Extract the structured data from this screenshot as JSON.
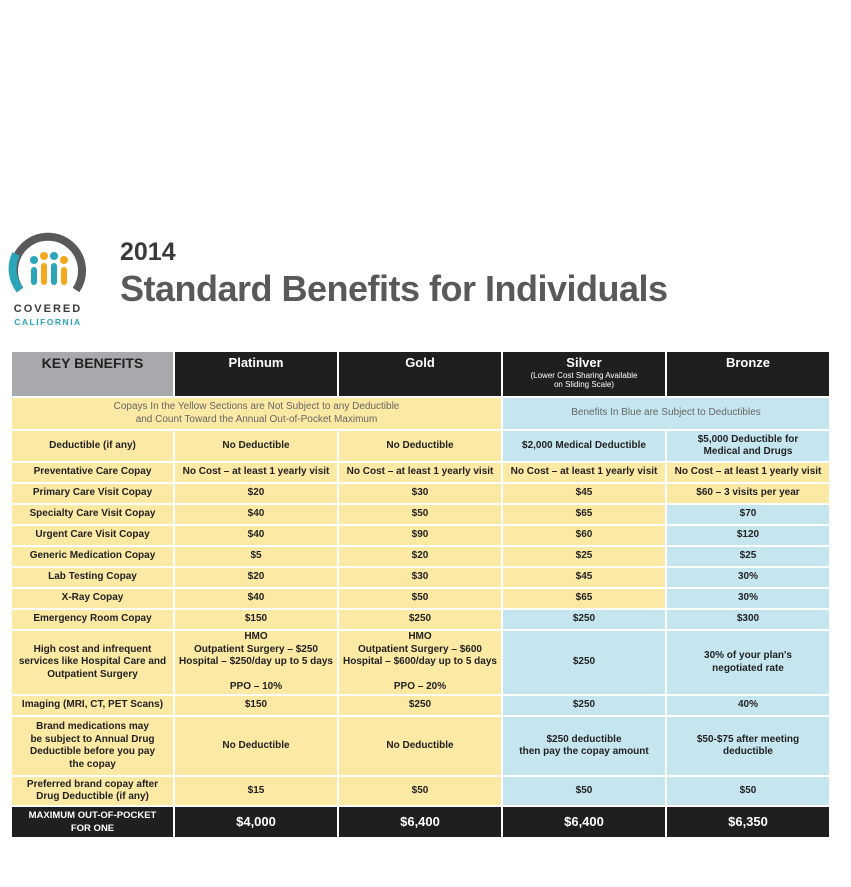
{
  "logo": {
    "line1": "COVERED",
    "line2": "CALIFORNIA"
  },
  "header": {
    "year": "2014",
    "title": "Standard Benefits for Individuals"
  },
  "table": {
    "columns": [
      "KEY BENEFITS",
      "Platinum",
      "Gold",
      "Silver",
      "Bronze"
    ],
    "silver_note": "(Lower Cost Sharing Available\non Sliding Scale)",
    "yellow_note": "Copays In the Yellow Sections are Not Subject to any Deductible\nand Count Toward the Annual Out-of-Pocket Maximum",
    "blue_note": "Benefits In Blue are Subject to Deductibles",
    "rows": [
      [
        "Deductible (if any)",
        "No Deductible",
        "No Deductible",
        "$2,000 Medical Deductible",
        "$5,000 Deductible for\nMedical and Drugs"
      ],
      [
        "Preventative Care Copay",
        "No Cost – at least 1 yearly visit",
        "No Cost – at least 1 yearly visit",
        "No Cost – at least 1 yearly visit",
        "No Cost – at least 1 yearly visit"
      ],
      [
        "Primary Care Visit Copay",
        "$20",
        "$30",
        "$45",
        "$60 – 3 visits per year"
      ],
      [
        "Specialty Care Visit Copay",
        "$40",
        "$50",
        "$65",
        "$70"
      ],
      [
        "Urgent Care Visit Copay",
        "$40",
        "$90",
        "$60",
        "$120"
      ],
      [
        "Generic Medication Copay",
        "$5",
        "$20",
        "$25",
        "$25"
      ],
      [
        "Lab Testing Copay",
        "$20",
        "$30",
        "$45",
        "30%"
      ],
      [
        "X-Ray Copay",
        "$40",
        "$50",
        "$65",
        "30%"
      ],
      [
        "Emergency Room Copay",
        "$150",
        "$250",
        "$250",
        "$300"
      ],
      [
        "High cost and infrequent\nservices like Hospital Care and\nOutpatient Surgery",
        "HMO\nOutpatient Surgery – $250\nHospital – $250/day up to 5 days\n\nPPO – 10%",
        "HMO\nOutpatient Surgery – $600\nHospital – $600/day up to 5 days\n\nPPO – 20%",
        "$250",
        "30% of your plan's\nnegotiated rate"
      ],
      [
        "Imaging (MRI, CT, PET Scans)",
        "$150",
        "$250",
        "$250",
        "40%"
      ],
      [
        "Brand medications may\nbe subject to Annual Drug\nDeductible before you pay\nthe copay",
        "No Deductible",
        "No Deductible",
        "$250 deductible\nthen pay the copay amount",
        "$50-$75 after meeting\ndeductible"
      ],
      [
        "Preferred brand copay after\nDrug Deductible (if any)",
        "$15",
        "$50",
        "$50",
        "$50"
      ]
    ],
    "total_row": [
      "MAXIMUM OUT-OF-POCKET\nFOR ONE",
      "$4,000",
      "$6,400",
      "$6,400",
      "$6,350"
    ]
  }
}
